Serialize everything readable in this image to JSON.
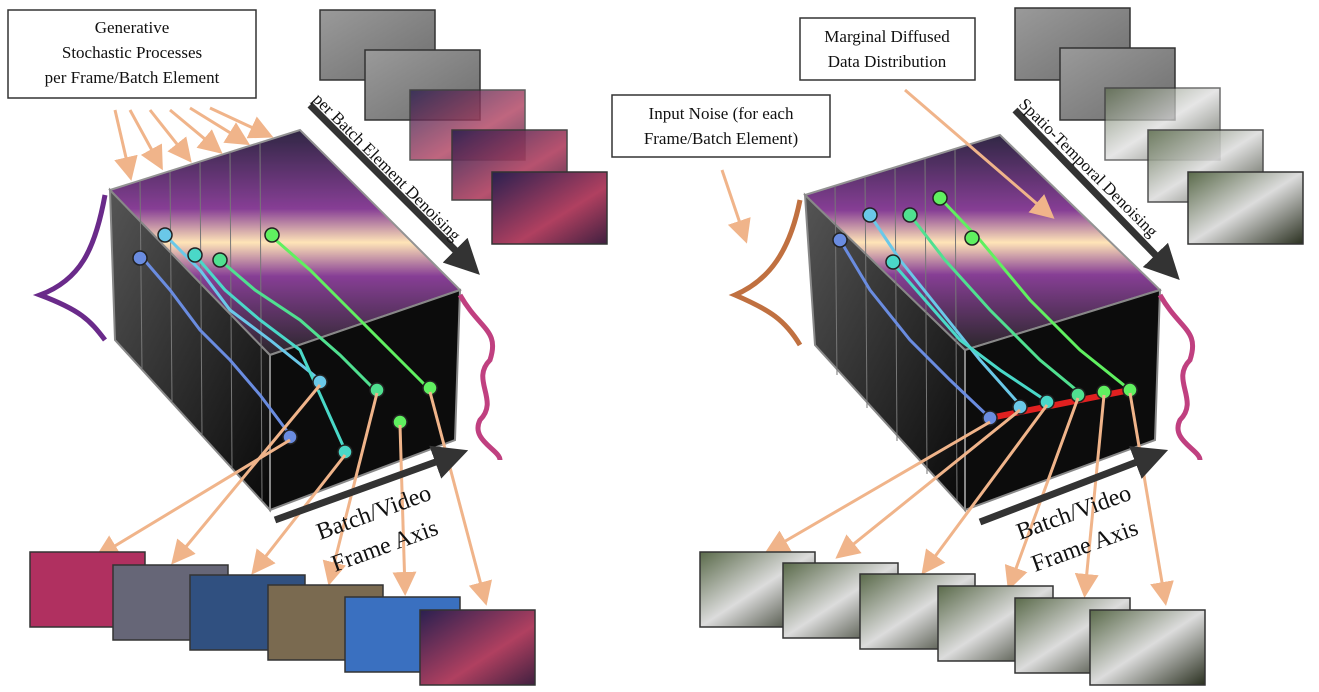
{
  "left": {
    "process_label": [
      "Generative",
      "Stochastic Processes",
      "per Frame/Batch Element"
    ],
    "denoise_label": "per Batch Element Denoising",
    "axis_label": [
      "Batch/Video",
      "Frame Axis"
    ]
  },
  "right": {
    "marginal_label": [
      "Marginal Diffused",
      "Data Distribution"
    ],
    "noise_label": [
      "Input Noise (for each",
      "Frame/Batch Element)"
    ],
    "denoise_label": "Spatio-Temporal Denoising",
    "axis_label": [
      "Batch/Video",
      "Frame Axis"
    ]
  }
}
